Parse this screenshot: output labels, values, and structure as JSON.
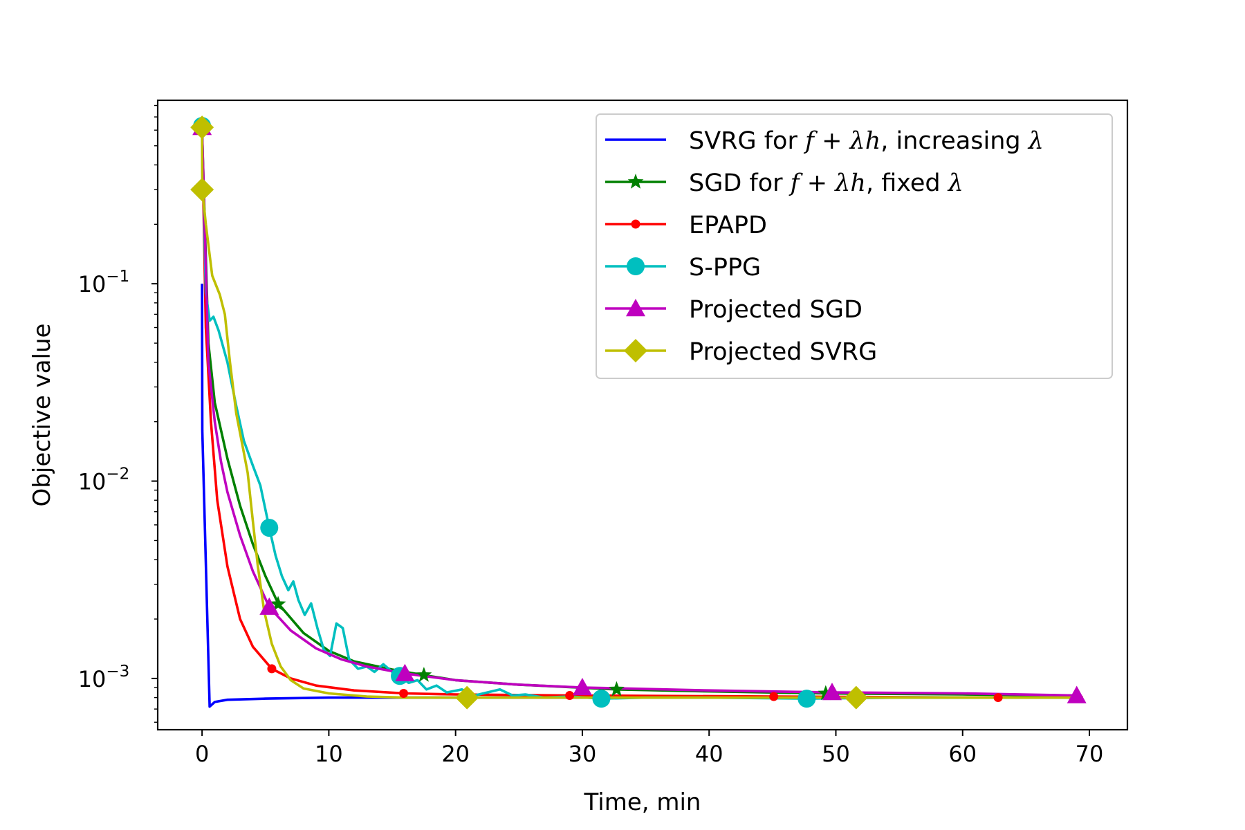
{
  "chart_data": {
    "type": "line",
    "xlabel": "Time, min",
    "ylabel": "Objective value",
    "xscale": "linear",
    "yscale": "log",
    "xlim": [
      -3.5,
      73
    ],
    "ylim": [
      0.00055,
      0.85
    ],
    "xticks": [
      0,
      10,
      20,
      30,
      40,
      50,
      60,
      70
    ],
    "xtick_labels": [
      "0",
      "10",
      "20",
      "30",
      "40",
      "50",
      "60",
      "70"
    ],
    "yticks": [
      0.1,
      0.01,
      0.001
    ],
    "ytick_labels": [
      {
        "base": "10",
        "exp": "−1"
      },
      {
        "base": "10",
        "exp": "−2"
      },
      {
        "base": "10",
        "exp": "−3"
      }
    ],
    "legend_position": "top-right",
    "series": [
      {
        "name": "SVRG for f + λh, increasing λ",
        "legend_parts": [
          "SVRG for ",
          "f",
          " + ",
          "λh",
          ", increasing ",
          "λ"
        ],
        "color": "#0000ff",
        "marker": "none",
        "points": [
          [
            0,
            0.1
          ],
          [
            0.02,
            0.018
          ],
          [
            0.6,
            0.00072
          ],
          [
            1.0,
            0.00076
          ],
          [
            2,
            0.00078
          ],
          [
            5,
            0.00079
          ],
          [
            10,
            0.0008
          ],
          [
            20,
            0.0008
          ],
          [
            69,
            0.0008
          ]
        ],
        "marker_points": []
      },
      {
        "name": "SGD for f + λh, fixed λ",
        "legend_parts": [
          "SGD for ",
          "f",
          " + ",
          "λh",
          ", fixed ",
          "λ"
        ],
        "color": "#008000",
        "marker": "star",
        "points": [
          [
            0,
            0.6
          ],
          [
            0.5,
            0.05
          ],
          [
            1,
            0.025
          ],
          [
            2,
            0.013
          ],
          [
            3,
            0.0075
          ],
          [
            4,
            0.0048
          ],
          [
            5,
            0.0033
          ],
          [
            6,
            0.0024
          ],
          [
            8,
            0.0017
          ],
          [
            10,
            0.00138
          ],
          [
            12,
            0.00122
          ],
          [
            15,
            0.00111
          ],
          [
            17.5,
            0.00104
          ],
          [
            20,
            0.00098
          ],
          [
            25,
            0.00093
          ],
          [
            32.7,
            0.00088
          ],
          [
            40,
            0.00086
          ],
          [
            49.2,
            0.00084
          ],
          [
            60,
            0.00083
          ],
          [
            69,
            0.00082
          ]
        ],
        "marker_points": [
          [
            6,
            0.00238
          ],
          [
            17.5,
            0.00104
          ],
          [
            32.7,
            0.00088
          ],
          [
            49.2,
            0.00084
          ]
        ]
      },
      {
        "name": "EPAPD",
        "legend_parts": [
          "EPAPD"
        ],
        "color": "#ff0000",
        "marker": "dot",
        "points": [
          [
            0,
            0.6
          ],
          [
            0.3,
            0.06
          ],
          [
            0.7,
            0.02
          ],
          [
            1.2,
            0.008
          ],
          [
            2,
            0.0037
          ],
          [
            3,
            0.002
          ],
          [
            4,
            0.00145
          ],
          [
            5.5,
            0.00112
          ],
          [
            7,
            0.001
          ],
          [
            9,
            0.00092
          ],
          [
            12,
            0.00087
          ],
          [
            16,
            0.00084
          ],
          [
            20,
            0.00083
          ],
          [
            29,
            0.00082
          ],
          [
            45,
            0.00081
          ],
          [
            62.8,
            0.0008
          ],
          [
            69.5,
            0.0008
          ]
        ],
        "marker_points": [
          [
            5.5,
            0.00112
          ],
          [
            15.9,
            0.00084
          ],
          [
            29,
            0.00082
          ],
          [
            45.1,
            0.00081
          ],
          [
            62.8,
            0.0008
          ]
        ]
      },
      {
        "name": "S-PPG",
        "legend_parts": [
          "S-PPG"
        ],
        "color": "#00bfbf",
        "marker": "circle",
        "points": [
          [
            0,
            0.63
          ],
          [
            0.3,
            0.09
          ],
          [
            0.6,
            0.065
          ],
          [
            0.9,
            0.068
          ],
          [
            1.3,
            0.058
          ],
          [
            2,
            0.04
          ],
          [
            2.7,
            0.024
          ],
          [
            3.3,
            0.016
          ],
          [
            4,
            0.012
          ],
          [
            4.6,
            0.0095
          ],
          [
            5.3,
            0.0058
          ],
          [
            5.8,
            0.0042
          ],
          [
            6.3,
            0.0033
          ],
          [
            6.8,
            0.0028
          ],
          [
            7.2,
            0.0031
          ],
          [
            7.6,
            0.0025
          ],
          [
            8.1,
            0.0021
          ],
          [
            8.6,
            0.0024
          ],
          [
            9.1,
            0.0018
          ],
          [
            9.6,
            0.0014
          ],
          [
            10.1,
            0.0013
          ],
          [
            10.6,
            0.0019
          ],
          [
            11.1,
            0.0018
          ],
          [
            11.6,
            0.00125
          ],
          [
            12.3,
            0.00112
          ],
          [
            13,
            0.00115
          ],
          [
            13.6,
            0.00108
          ],
          [
            14.3,
            0.00118
          ],
          [
            15,
            0.00108
          ],
          [
            15.6,
            0.00103
          ],
          [
            16.3,
            0.00095
          ],
          [
            17,
            0.00098
          ],
          [
            17.7,
            0.00088
          ],
          [
            18.5,
            0.00092
          ],
          [
            19.3,
            0.00085
          ],
          [
            20.5,
            0.00088
          ],
          [
            21.5,
            0.00082
          ],
          [
            22.5,
            0.00085
          ],
          [
            23.5,
            0.00088
          ],
          [
            24.5,
            0.00082
          ],
          [
            25.5,
            0.00083
          ],
          [
            27,
            0.0008
          ],
          [
            29,
            0.00081
          ],
          [
            31.5,
            0.00079
          ],
          [
            35,
            0.0008
          ],
          [
            40,
            0.0008
          ],
          [
            47.7,
            0.00079
          ],
          [
            55,
            0.0008
          ],
          [
            69,
            0.0008
          ]
        ],
        "marker_points": [
          [
            0,
            0.63
          ],
          [
            5.3,
            0.0058
          ],
          [
            15.6,
            0.00103
          ],
          [
            31.5,
            0.00079
          ],
          [
            47.7,
            0.00079
          ]
        ]
      },
      {
        "name": "Projected SGD",
        "legend_parts": [
          "Projected SGD"
        ],
        "color": "#bf00bf",
        "marker": "triangle",
        "points": [
          [
            0,
            0.62
          ],
          [
            0.5,
            0.04
          ],
          [
            1,
            0.02
          ],
          [
            1.5,
            0.0125
          ],
          [
            2,
            0.0088
          ],
          [
            3,
            0.0053
          ],
          [
            4,
            0.0035
          ],
          [
            5.3,
            0.0023
          ],
          [
            7,
            0.00175
          ],
          [
            9,
            0.00142
          ],
          [
            11,
            0.00125
          ],
          [
            13,
            0.00115
          ],
          [
            16,
            0.00106
          ],
          [
            20,
            0.00098
          ],
          [
            25,
            0.00093
          ],
          [
            30,
            0.0009
          ],
          [
            40,
            0.00087
          ],
          [
            49.7,
            0.00085
          ],
          [
            60,
            0.00084
          ],
          [
            69,
            0.00082
          ]
        ],
        "marker_points": [
          [
            0,
            0.62
          ],
          [
            5.3,
            0.0023
          ],
          [
            16,
            0.00106
          ],
          [
            30,
            0.0009
          ],
          [
            49.7,
            0.00085
          ],
          [
            69,
            0.00082
          ]
        ]
      },
      {
        "name": "Projected SVRG",
        "legend_parts": [
          "Projected SVRG"
        ],
        "color": "#bfbf00",
        "marker": "diamond",
        "points": [
          [
            0,
            0.62
          ],
          [
            0.02,
            0.3
          ],
          [
            0.3,
            0.2
          ],
          [
            0.8,
            0.11
          ],
          [
            1.4,
            0.088
          ],
          [
            1.8,
            0.07
          ],
          [
            2.2,
            0.04
          ],
          [
            2.7,
            0.022
          ],
          [
            3.2,
            0.015
          ],
          [
            3.6,
            0.011
          ],
          [
            4.0,
            0.0063
          ],
          [
            4.4,
            0.0037
          ],
          [
            4.9,
            0.0022
          ],
          [
            5.5,
            0.0015
          ],
          [
            6.2,
            0.00115
          ],
          [
            7,
            0.00098
          ],
          [
            8,
            0.00089
          ],
          [
            10,
            0.00084
          ],
          [
            13,
            0.00081
          ],
          [
            16,
            0.0008
          ],
          [
            20.9,
            0.0008
          ],
          [
            30,
            0.0008
          ],
          [
            51.6,
            0.0008
          ],
          [
            69,
            0.0008
          ]
        ],
        "marker_points": [
          [
            0,
            0.62
          ],
          [
            0,
            0.3
          ],
          [
            20.9,
            0.0008
          ],
          [
            51.6,
            0.0008
          ]
        ]
      }
    ]
  }
}
